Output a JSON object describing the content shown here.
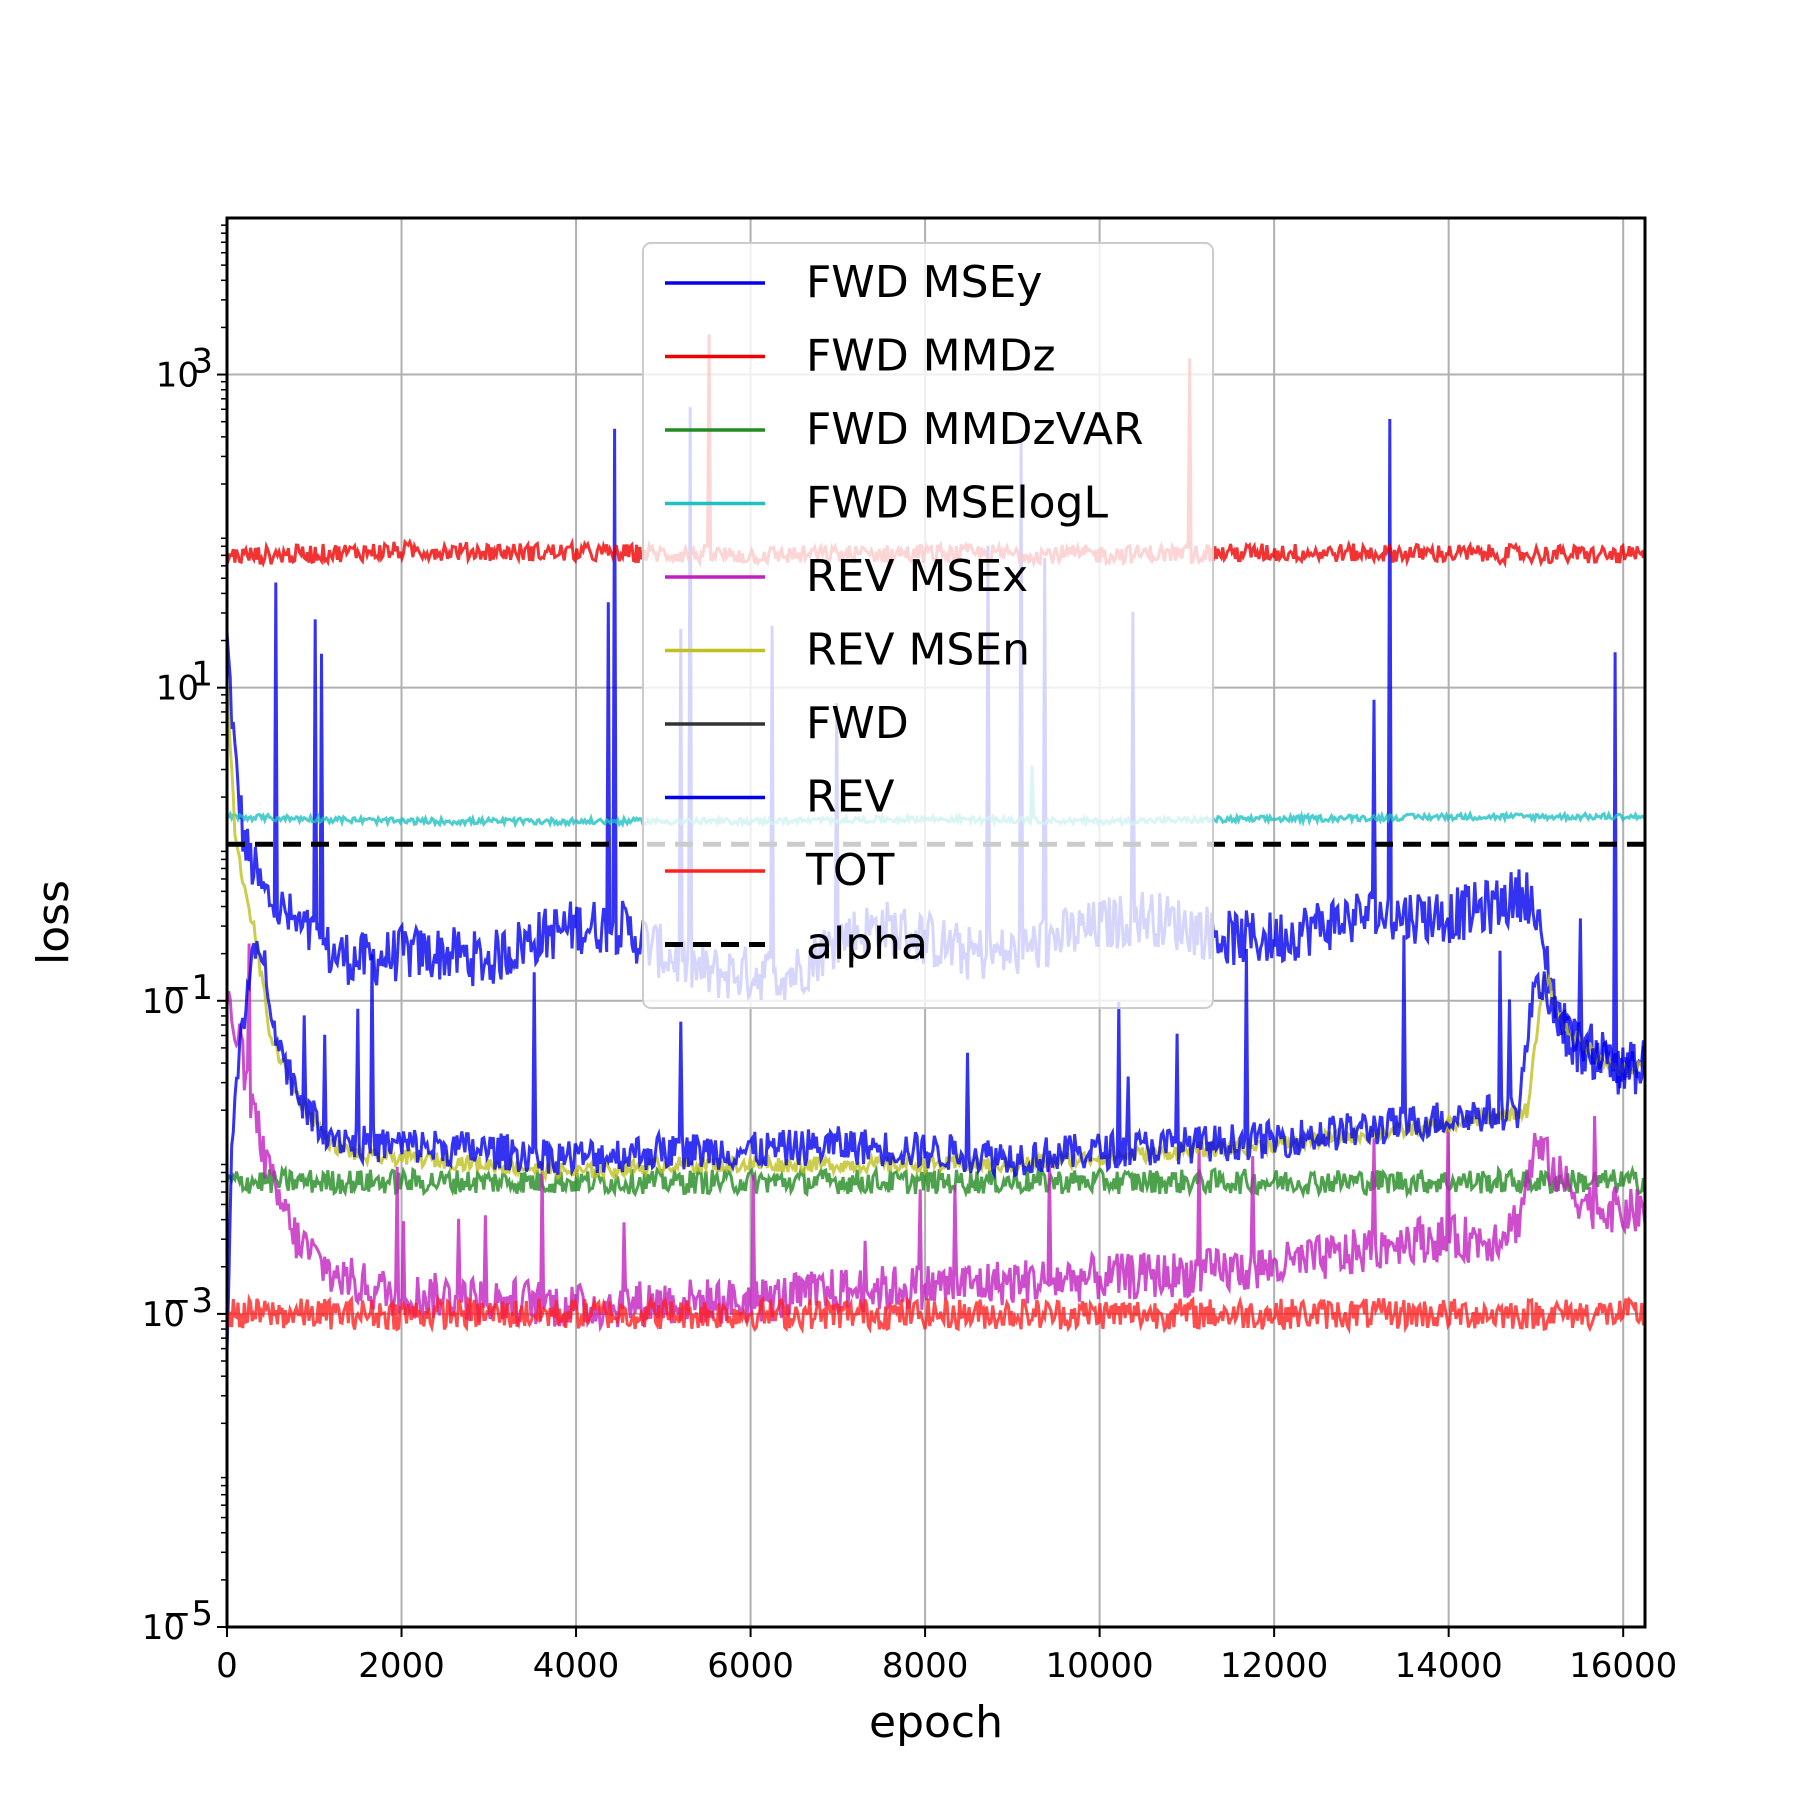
{
  "chart_data": {
    "type": "line",
    "title": "",
    "xlabel": "epoch",
    "ylabel": "loss",
    "xlim": [
      0,
      16250
    ],
    "ylim": [
      1e-05,
      10000
    ],
    "yscale": "log",
    "grid": true,
    "legend_position": "upper-center",
    "x_ticks": [
      0,
      2000,
      4000,
      6000,
      8000,
      10000,
      12000,
      14000,
      16000
    ],
    "x_tick_labels": [
      "0",
      "2000",
      "4000",
      "6000",
      "8000",
      "10000",
      "12000",
      "14000",
      "16000"
    ],
    "y_ticks": [
      1e-05,
      0.001,
      0.1,
      10,
      1000
    ],
    "y_tick_labels": [
      {
        "base": "10",
        "exp": "−5"
      },
      {
        "base": "10",
        "exp": "−3"
      },
      {
        "base": "10",
        "exp": "−1"
      },
      {
        "base": "10",
        "exp": "1"
      },
      {
        "base": "10",
        "exp": "3"
      }
    ],
    "series": [
      {
        "name": "FWD MSEy",
        "color": "#0000ee",
        "x": [
          0,
          100,
          200,
          400,
          800,
          1200,
          1600,
          2000,
          2500,
          3000,
          3500,
          4000,
          4500,
          5000,
          5500,
          6000,
          6500,
          7000,
          7500,
          8000,
          8500,
          9000,
          9500,
          10000,
          10500,
          11000,
          11500,
          12000,
          12500,
          13000,
          13500,
          14000,
          14500,
          14900,
          15100,
          15300,
          15500,
          15800,
          16000,
          16250
        ],
        "y": [
          20,
          3,
          1.0,
          0.5,
          0.3,
          0.2,
          0.18,
          0.2,
          0.2,
          0.18,
          0.25,
          0.3,
          0.3,
          0.2,
          0.15,
          0.15,
          0.15,
          0.25,
          0.3,
          0.25,
          0.2,
          0.2,
          0.25,
          0.3,
          0.35,
          0.3,
          0.25,
          0.25,
          0.3,
          0.35,
          0.35,
          0.35,
          0.4,
          0.5,
          0.2,
          0.07,
          0.05,
          0.045,
          0.035,
          0.04
        ]
      },
      {
        "name": "FWD MMDz",
        "color": "#ee0000",
        "x": [
          0,
          500,
          1000,
          2000,
          4000,
          6000,
          8000,
          10000,
          12000,
          14000,
          16250
        ],
        "y": [
          70,
          70,
          72,
          75,
          73,
          70,
          72,
          71,
          73,
          72,
          70
        ]
      },
      {
        "name": "FWD MMDzVAR",
        "color": "#228b22",
        "x": [
          0,
          2000,
          4000,
          6000,
          8000,
          10000,
          12000,
          14000,
          16250
        ],
        "y": [
          0.007,
          0.007,
          0.007,
          0.007,
          0.007,
          0.007,
          0.007,
          0.007,
          0.007
        ]
      },
      {
        "name": "FWD MSElogL",
        "color": "#20c0c0",
        "x": [
          0,
          2000,
          4000,
          6000,
          8000,
          10000,
          12000,
          14000,
          16250
        ],
        "y": [
          1.5,
          1.4,
          1.4,
          1.4,
          1.45,
          1.4,
          1.45,
          1.5,
          1.5
        ]
      },
      {
        "name": "REV MSEx",
        "color": "#c020c0",
        "x": [
          0,
          150,
          300,
          500,
          800,
          1200,
          1600,
          2000,
          2500,
          3000,
          3500,
          4000,
          5000,
          6000,
          7000,
          8000,
          9000,
          10000,
          11000,
          12000,
          13000,
          13500,
          14000,
          14500,
          14800,
          15000,
          15300,
          15600,
          16000,
          16250
        ],
        "y": [
          0.1,
          0.05,
          0.02,
          0.007,
          0.003,
          0.0018,
          0.0015,
          0.0013,
          0.0013,
          0.0012,
          0.0012,
          0.0011,
          0.0012,
          0.0012,
          0.0014,
          0.0015,
          0.0016,
          0.0017,
          0.0018,
          0.002,
          0.0025,
          0.003,
          0.003,
          0.003,
          0.004,
          0.012,
          0.007,
          0.005,
          0.0045,
          0.0045
        ]
      },
      {
        "name": "REV MSEn",
        "color": "#c0c020",
        "x": [
          0,
          100,
          300,
          500,
          800,
          1200,
          1600,
          2000,
          3000,
          4000,
          5000,
          6000,
          7000,
          8000,
          9000,
          10000,
          11000,
          12000,
          13000,
          14000,
          14900,
          15100,
          15300,
          15600,
          16000,
          16250
        ],
        "y": [
          10,
          1.0,
          0.3,
          0.06,
          0.025,
          0.012,
          0.01,
          0.01,
          0.009,
          0.008,
          0.009,
          0.009,
          0.009,
          0.009,
          0.009,
          0.01,
          0.011,
          0.012,
          0.014,
          0.016,
          0.02,
          0.15,
          0.07,
          0.05,
          0.035,
          0.038
        ]
      },
      {
        "name": "FWD",
        "color": "#333333",
        "x": [],
        "y": []
      },
      {
        "name": "REV",
        "color": "#0000ee",
        "x": [
          0,
          50,
          150,
          300,
          400,
          600,
          900,
          1200,
          1600,
          2000,
          3000,
          4000,
          5000,
          6000,
          7000,
          8000,
          9000,
          10000,
          11000,
          12000,
          13000,
          14000,
          14800,
          15000,
          15300,
          15600,
          16000,
          16250
        ],
        "y": [
          0.0005,
          0.01,
          0.06,
          0.18,
          0.22,
          0.05,
          0.02,
          0.014,
          0.012,
          0.012,
          0.011,
          0.01,
          0.011,
          0.011,
          0.012,
          0.011,
          0.01,
          0.011,
          0.012,
          0.013,
          0.015,
          0.018,
          0.02,
          0.15,
          0.07,
          0.05,
          0.035,
          0.04
        ]
      },
      {
        "name": "TOT",
        "color": "#ff2020",
        "x": [
          0,
          2000,
          4000,
          6000,
          8000,
          10000,
          12000,
          14000,
          16250
        ],
        "y": [
          0.001,
          0.001,
          0.001,
          0.001,
          0.001,
          0.001,
          0.001,
          0.001,
          0.001
        ]
      },
      {
        "name": "alpha",
        "color": "#000000",
        "dashed": true,
        "x": [
          0,
          16250
        ],
        "y": [
          1.0,
          1.0
        ]
      }
    ]
  }
}
